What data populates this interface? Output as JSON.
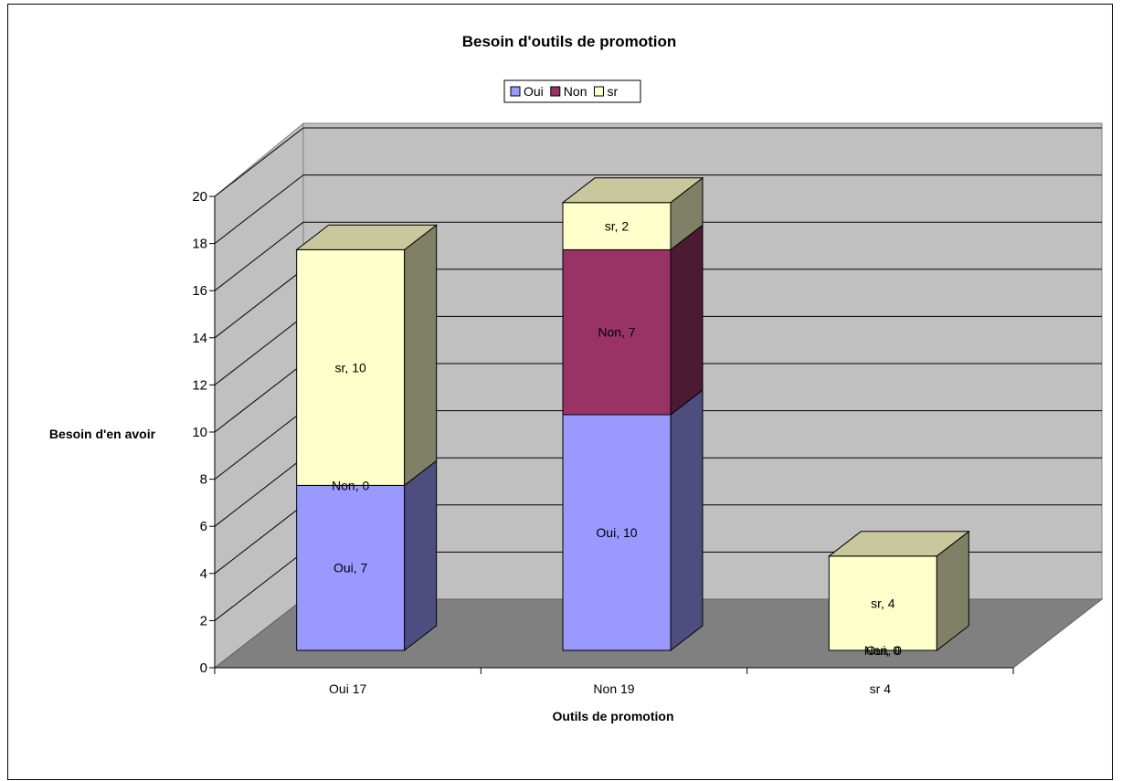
{
  "chart_data": {
    "type": "bar",
    "stacked": true,
    "three_d": true,
    "title": "Besoin d'outils de promotion",
    "xlabel": "Outils de promotion",
    "ylabel": "Besoin d'en avoir",
    "ylim": [
      0,
      20
    ],
    "y_ticks": [
      "0",
      "2",
      "4",
      "6",
      "8",
      "10",
      "12",
      "14",
      "16",
      "18",
      "20"
    ],
    "grid": true,
    "legend_position": "top-center",
    "categories": [
      "Oui 17",
      "Non 19",
      "sr 4"
    ],
    "series": [
      {
        "name": "Oui",
        "values": [
          7,
          10,
          0
        ],
        "labels": [
          "Oui, 7",
          "Oui, 10",
          "Oui, 0"
        ],
        "color": "#9999ff",
        "side_color": "#4d4d80",
        "top_color": "#b8b8ff"
      },
      {
        "name": "Non",
        "values": [
          0,
          7,
          0
        ],
        "labels": [
          "Non, 0",
          "Non, 7",
          "Non, 0"
        ],
        "color": "#993366",
        "side_color": "#4d1a33",
        "top_color": "#b35c85"
      },
      {
        "name": "sr",
        "values": [
          10,
          2,
          4
        ],
        "labels": [
          "sr, 10",
          "sr, 2",
          "sr, 4"
        ],
        "color": "#ffffcc",
        "side_color": "#808066",
        "top_color": "#c8c89c"
      }
    ],
    "colors": {
      "wall": "#c0c0c0",
      "floor": "#808080",
      "gridline": "#000000"
    }
  }
}
